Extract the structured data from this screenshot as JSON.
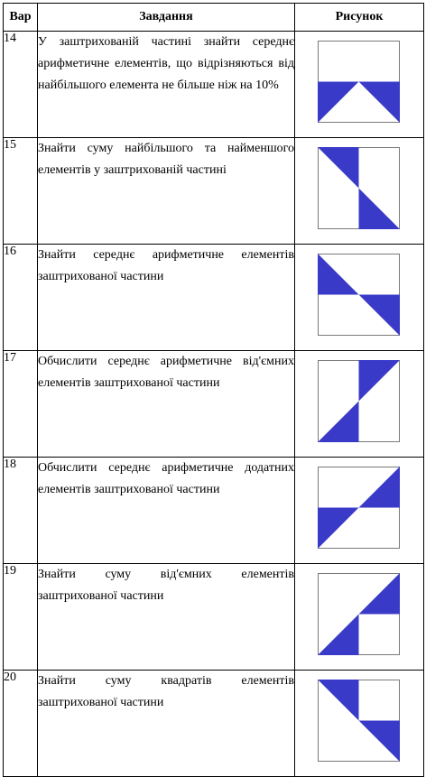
{
  "header": {
    "var": "Вар",
    "task": "Завдання",
    "pic": "Рисунок"
  },
  "shade_color": "#3a3ac8",
  "rows": [
    {
      "var": "14",
      "task": "У заштрихованій частині знайти середнє арифметичне елементів, що відрізняються від найбільшого елемента не більше ніж на 10%",
      "figure": "bottom-half-with-top-triangle-cutout"
    },
    {
      "var": "15",
      "task": "Знайти суму найбільшого та найменшого елементів у заштрихованій частині",
      "figure": "two-triangles-left-top-right-bottom"
    },
    {
      "var": "16",
      "task": "Знайти середнє арифметичне елементів заштрихованої частини",
      "figure": "two-triangles-left-middle-right-bottom"
    },
    {
      "var": "17",
      "task": "Обчислити середнє арифметичне від'ємних елементів заштрихованої частини",
      "figure": "two-triangles-right-top-left-bottom"
    },
    {
      "var": "18",
      "task": "Обчислити середнє арифметичне додатних елементів заштрихованої частини",
      "figure": "two-triangles-right-top-left-middle"
    },
    {
      "var": "19",
      "task": "Знайти суму від'ємних елементів заштрихованої частини",
      "figure": "two-triangles-upper-right-lower-left"
    },
    {
      "var": "20",
      "task": "Знайти суму квадратів елементів заштрихованої частини",
      "figure": "two-triangles-upper-left-lower-right"
    }
  ]
}
